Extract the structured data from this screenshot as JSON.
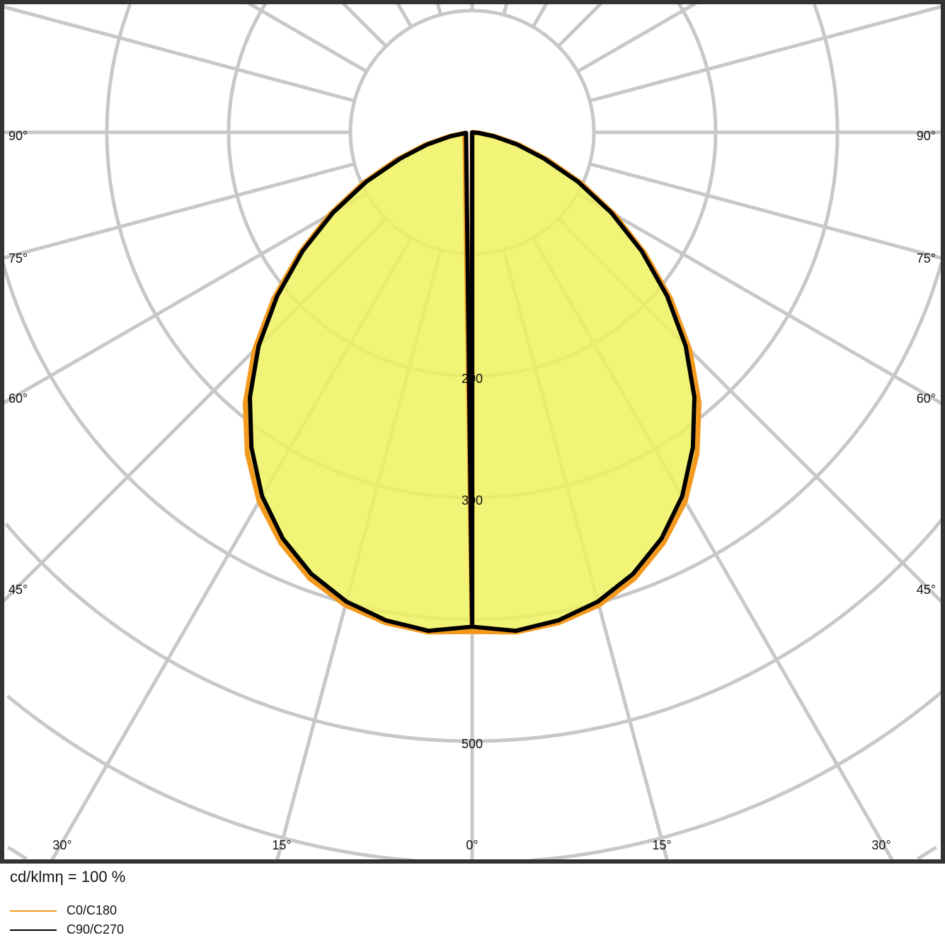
{
  "chart_data": {
    "type": "polar",
    "unit_label": "cd/klmη = 100 %",
    "radial_ticks": [
      100,
      200,
      300,
      400,
      500,
      600,
      700
    ],
    "radial_tick_labels_shown": [
      "200",
      "300",
      "500"
    ],
    "angle_step_deg": 15,
    "angle_labels": {
      "left": [
        "90°",
        "75°",
        "60°",
        "45°"
      ],
      "bottom": [
        "30°",
        "15°",
        "0°",
        "15°",
        "30°"
      ],
      "right": [
        "45°",
        "60°",
        "75°",
        "90°"
      ]
    },
    "grid": true,
    "fill_color": "#eef25e",
    "angles_deg": [
      0,
      5,
      10,
      15,
      20,
      25,
      30,
      35,
      40,
      45,
      50,
      55,
      60,
      65,
      70,
      75,
      80,
      85,
      90
    ],
    "series": [
      {
        "name": "C0/C180",
        "color": "#f39a1e",
        "values": [
          410,
          412,
          409,
          402,
          390,
          372,
          350,
          322,
          290,
          253,
          213,
          173,
          135,
          99,
          66,
          40,
          19,
          6,
          0
        ]
      },
      {
        "name": "C90/C270",
        "color": "#000000",
        "values": [
          406,
          411,
          407,
          399,
          386,
          368,
          345,
          316,
          284,
          248,
          209,
          170,
          132,
          96,
          63,
          38,
          18,
          5,
          0
        ]
      }
    ]
  }
}
